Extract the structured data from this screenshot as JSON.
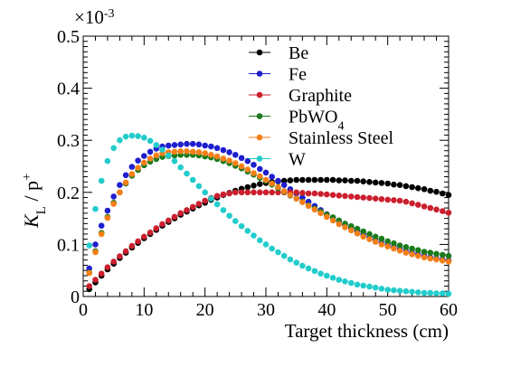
{
  "chart_data": {
    "type": "scatter",
    "xlabel": "Target thickness (cm)",
    "ylabel_main": "K",
    "ylabel_sub": "L",
    "ylabel_rest": " / p",
    "ylabel_sup": "+",
    "y_exponent_label": "×10",
    "y_exponent_power": "-3",
    "xlim": [
      0,
      60
    ],
    "ylim": [
      0,
      0.5
    ],
    "xticks": [
      0,
      10,
      20,
      30,
      40,
      50,
      60
    ],
    "yticks": [
      0,
      0.1,
      0.2,
      0.3,
      0.4,
      0.5
    ],
    "ytick_labels": [
      "0",
      "0.1",
      "0.2",
      "0.3",
      "0.4",
      "0.5"
    ],
    "grid": false,
    "legend_position": "top-right",
    "x": [
      1,
      2,
      3,
      4,
      5,
      6,
      7,
      8,
      9,
      10,
      11,
      12,
      13,
      14,
      15,
      16,
      17,
      18,
      19,
      20,
      21,
      22,
      23,
      24,
      25,
      26,
      27,
      28,
      29,
      30,
      31,
      32,
      33,
      34,
      35,
      36,
      37,
      38,
      39,
      40,
      41,
      42,
      43,
      44,
      45,
      46,
      47,
      48,
      49,
      50,
      51,
      52,
      53,
      54,
      55,
      56,
      57,
      58,
      59,
      60
    ],
    "series": [
      {
        "name": "Be",
        "legend_main": "Be",
        "legend_sub": "",
        "color": "#000000",
        "values": [
          0.014,
          0.027,
          0.04,
          0.052,
          0.063,
          0.074,
          0.084,
          0.094,
          0.103,
          0.112,
          0.12,
          0.128,
          0.136,
          0.143,
          0.15,
          0.157,
          0.163,
          0.169,
          0.175,
          0.18,
          0.186,
          0.19,
          0.195,
          0.199,
          0.203,
          0.207,
          0.21,
          0.213,
          0.216,
          0.218,
          0.22,
          0.221,
          0.222,
          0.223,
          0.224,
          0.224,
          0.224,
          0.224,
          0.224,
          0.224,
          0.224,
          0.223,
          0.223,
          0.222,
          0.222,
          0.221,
          0.22,
          0.219,
          0.218,
          0.217,
          0.215,
          0.214,
          0.212,
          0.21,
          0.208,
          0.206,
          0.203,
          0.201,
          0.198,
          0.195
        ]
      },
      {
        "name": "Fe",
        "legend_main": "Fe",
        "legend_sub": "",
        "color": "#1f1fcf",
        "values": [
          0.054,
          0.1,
          0.136,
          0.165,
          0.192,
          0.214,
          0.233,
          0.249,
          0.261,
          0.27,
          0.278,
          0.284,
          0.288,
          0.29,
          0.291,
          0.292,
          0.293,
          0.293,
          0.292,
          0.29,
          0.288,
          0.285,
          0.281,
          0.277,
          0.272,
          0.266,
          0.26,
          0.253,
          0.245,
          0.238,
          0.23,
          0.222,
          0.214,
          0.206,
          0.198,
          0.19,
          0.182,
          0.174,
          0.166,
          0.158,
          0.151,
          0.144,
          0.138,
          0.132,
          0.125,
          0.119,
          0.114,
          0.108,
          0.103,
          0.099,
          0.095,
          0.091,
          0.087,
          0.084,
          0.081,
          0.078,
          0.075,
          0.073,
          0.071,
          0.069
        ]
      },
      {
        "name": "Graphite",
        "legend_main": "Graphite",
        "legend_sub": "",
        "color": "#cc1f2e",
        "values": [
          0.02,
          0.032,
          0.044,
          0.056,
          0.067,
          0.077,
          0.087,
          0.097,
          0.106,
          0.115,
          0.123,
          0.131,
          0.139,
          0.146,
          0.153,
          0.16,
          0.166,
          0.172,
          0.178,
          0.184,
          0.189,
          0.193,
          0.196,
          0.198,
          0.2,
          0.2,
          0.2,
          0.2,
          0.2,
          0.2,
          0.2,
          0.2,
          0.2,
          0.2,
          0.2,
          0.199,
          0.198,
          0.198,
          0.197,
          0.196,
          0.195,
          0.194,
          0.193,
          0.192,
          0.191,
          0.19,
          0.189,
          0.188,
          0.187,
          0.186,
          0.185,
          0.184,
          0.182,
          0.179,
          0.176,
          0.173,
          0.17,
          0.167,
          0.164,
          0.161
        ]
      },
      {
        "name": "PbWO4",
        "legend_main": "PbWO",
        "legend_sub": "4",
        "color": "#1a7a1a",
        "values": [
          0.046,
          0.087,
          0.122,
          0.153,
          0.18,
          0.2,
          0.217,
          0.232,
          0.243,
          0.252,
          0.259,
          0.264,
          0.268,
          0.27,
          0.271,
          0.272,
          0.272,
          0.272,
          0.271,
          0.269,
          0.267,
          0.264,
          0.26,
          0.256,
          0.251,
          0.246,
          0.24,
          0.234,
          0.228,
          0.222,
          0.215,
          0.208,
          0.201,
          0.194,
          0.188,
          0.182,
          0.175,
          0.169,
          0.163,
          0.157,
          0.152,
          0.146,
          0.14,
          0.135,
          0.13,
          0.125,
          0.12,
          0.115,
          0.111,
          0.106,
          0.102,
          0.098,
          0.095,
          0.092,
          0.089,
          0.086,
          0.084,
          0.082,
          0.08,
          0.078
        ]
      },
      {
        "name": "Stainless Steel",
        "legend_main": "Stainless Steel",
        "legend_sub": "",
        "color": "#f57f17",
        "values": [
          0.045,
          0.085,
          0.12,
          0.151,
          0.178,
          0.2,
          0.219,
          0.235,
          0.247,
          0.257,
          0.265,
          0.271,
          0.275,
          0.277,
          0.278,
          0.279,
          0.279,
          0.278,
          0.277,
          0.275,
          0.272,
          0.269,
          0.265,
          0.261,
          0.256,
          0.25,
          0.244,
          0.237,
          0.231,
          0.224,
          0.217,
          0.21,
          0.202,
          0.195,
          0.188,
          0.181,
          0.174,
          0.167,
          0.16,
          0.153,
          0.146,
          0.139,
          0.133,
          0.127,
          0.121,
          0.115,
          0.11,
          0.105,
          0.1,
          0.096,
          0.092,
          0.088,
          0.084,
          0.081,
          0.078,
          0.075,
          0.073,
          0.071,
          0.069,
          0.067
        ]
      },
      {
        "name": "W",
        "legend_main": "W",
        "legend_sub": "",
        "color": "#22cccc",
        "values": [
          0.098,
          0.168,
          0.222,
          0.26,
          0.285,
          0.3,
          0.307,
          0.309,
          0.308,
          0.305,
          0.299,
          0.291,
          0.282,
          0.271,
          0.26,
          0.248,
          0.236,
          0.224,
          0.212,
          0.2,
          0.188,
          0.177,
          0.166,
          0.155,
          0.145,
          0.135,
          0.126,
          0.117,
          0.108,
          0.1,
          0.092,
          0.085,
          0.078,
          0.071,
          0.065,
          0.059,
          0.054,
          0.049,
          0.044,
          0.04,
          0.036,
          0.032,
          0.029,
          0.026,
          0.023,
          0.021,
          0.019,
          0.017,
          0.015,
          0.013,
          0.012,
          0.011,
          0.01,
          0.009,
          0.008,
          0.007,
          0.007,
          0.006,
          0.006,
          0.005
        ]
      }
    ]
  }
}
